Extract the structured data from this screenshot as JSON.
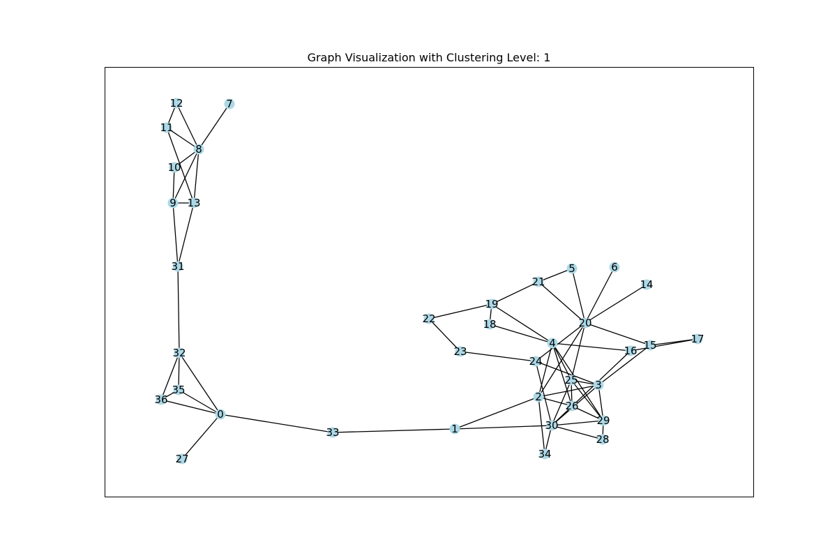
{
  "title": "Graph Visualization with Clustering Level: 1",
  "node_color": "#add8e6",
  "edge_color": "#000000",
  "nodes": [
    "0",
    "1",
    "2",
    "3",
    "4",
    "5",
    "6",
    "7",
    "8",
    "9",
    "10",
    "11",
    "12",
    "13",
    "14",
    "15",
    "16",
    "17",
    "18",
    "19",
    "20",
    "21",
    "22",
    "23",
    "24",
    "25",
    "26",
    "27",
    "28",
    "29",
    "30",
    "31",
    "32",
    "33",
    "34",
    "35",
    "36"
  ],
  "edges": [
    [
      "12",
      "11"
    ],
    [
      "12",
      "8"
    ],
    [
      "7",
      "8"
    ],
    [
      "11",
      "8"
    ],
    [
      "11",
      "13"
    ],
    [
      "8",
      "10"
    ],
    [
      "8",
      "9"
    ],
    [
      "8",
      "13"
    ],
    [
      "10",
      "9"
    ],
    [
      "9",
      "13"
    ],
    [
      "9",
      "31"
    ],
    [
      "13",
      "31"
    ],
    [
      "31",
      "32"
    ],
    [
      "32",
      "35"
    ],
    [
      "32",
      "36"
    ],
    [
      "32",
      "0"
    ],
    [
      "35",
      "36"
    ],
    [
      "35",
      "0"
    ],
    [
      "36",
      "0"
    ],
    [
      "0",
      "27"
    ],
    [
      "0",
      "33"
    ],
    [
      "33",
      "1"
    ],
    [
      "1",
      "2"
    ],
    [
      "1",
      "30"
    ],
    [
      "22",
      "19"
    ],
    [
      "22",
      "23"
    ],
    [
      "23",
      "24"
    ],
    [
      "19",
      "21"
    ],
    [
      "19",
      "18"
    ],
    [
      "19",
      "4"
    ],
    [
      "18",
      "4"
    ],
    [
      "21",
      "5"
    ],
    [
      "21",
      "20"
    ],
    [
      "5",
      "20"
    ],
    [
      "6",
      "20"
    ],
    [
      "14",
      "20"
    ],
    [
      "20",
      "15"
    ],
    [
      "20",
      "24"
    ],
    [
      "20",
      "2"
    ],
    [
      "20",
      "25"
    ],
    [
      "4",
      "16"
    ],
    [
      "4",
      "25"
    ],
    [
      "4",
      "26"
    ],
    [
      "4",
      "29"
    ],
    [
      "4",
      "2"
    ],
    [
      "16",
      "17"
    ],
    [
      "15",
      "17"
    ],
    [
      "15",
      "3"
    ],
    [
      "16",
      "30"
    ],
    [
      "24",
      "3"
    ],
    [
      "24",
      "30"
    ],
    [
      "2",
      "3"
    ],
    [
      "2",
      "34"
    ],
    [
      "2",
      "26"
    ],
    [
      "25",
      "3"
    ],
    [
      "25",
      "26"
    ],
    [
      "25",
      "30"
    ],
    [
      "25",
      "29"
    ],
    [
      "3",
      "30"
    ],
    [
      "3",
      "29"
    ],
    [
      "26",
      "29"
    ],
    [
      "30",
      "29"
    ],
    [
      "30",
      "28"
    ],
    [
      "30",
      "34"
    ],
    [
      "29",
      "28"
    ]
  ]
}
